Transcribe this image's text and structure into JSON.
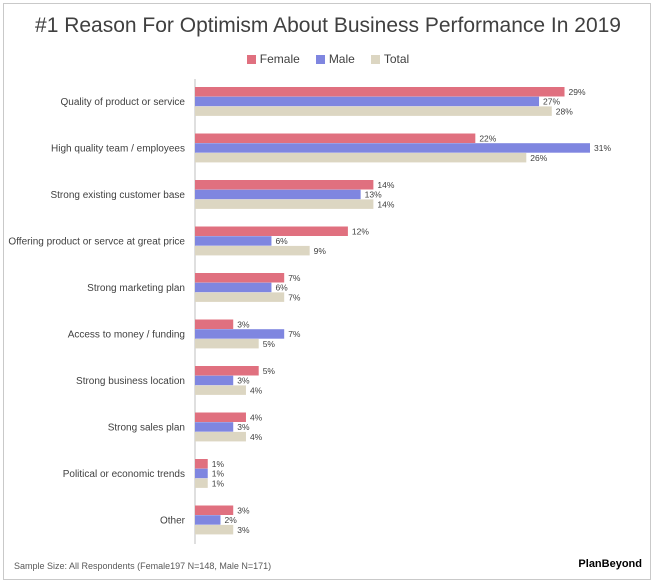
{
  "chart_data": {
    "type": "bar",
    "orientation": "horizontal",
    "title": "#1 Reason For Optimism About Business Performance In 2019",
    "categories": [
      "Quality of product or service",
      "High quality team / employees",
      "Strong existing customer base",
      "Offering  product or servce at great price",
      "Strong marketing plan",
      "Access to money / funding",
      "Strong business location",
      "Strong sales plan",
      "Political or economic trends",
      "Other"
    ],
    "series": [
      {
        "name": "Female",
        "color": "#e0707f",
        "values": [
          29,
          22,
          14,
          12,
          7,
          3,
          5,
          4,
          1,
          3
        ],
        "labels": [
          "29%",
          "22%",
          "14%",
          "12%",
          "7%",
          "3%",
          "5%",
          "4%",
          "1%",
          "3%"
        ]
      },
      {
        "name": "Male",
        "color": "#7f86e0",
        "values": [
          27,
          31,
          13,
          6,
          6,
          7,
          3,
          3,
          1,
          2
        ],
        "labels": [
          "27%",
          "31%",
          "13%",
          "6%",
          "6%",
          "7%",
          "3%",
          "3%",
          "1%",
          "2%"
        ]
      },
      {
        "name": "Total",
        "color": "#dcd6c2",
        "values": [
          28,
          26,
          14,
          9,
          7,
          5,
          4,
          4,
          1,
          3
        ],
        "labels": [
          "28%",
          "26%",
          "14%",
          "9%",
          "7%",
          "5%",
          "4%",
          "4%",
          "1%",
          "3%"
        ]
      }
    ],
    "xlim": [
      0,
      31
    ],
    "xlabel": "",
    "ylabel": "",
    "grid": false,
    "legend_position": "top-center"
  },
  "footnote": "Sample Size: All Respondents (Female197 N=148, Male N=171)",
  "brand": "PlanBeyond"
}
